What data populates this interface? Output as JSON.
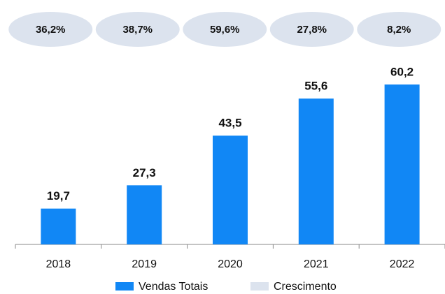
{
  "chart_data": {
    "type": "bar",
    "categories": [
      "2018",
      "2019",
      "2020",
      "2021",
      "2022"
    ],
    "series": [
      {
        "name": "Vendas Totais",
        "color": "#1187f5",
        "values": [
          19.7,
          27.3,
          43.5,
          55.6,
          60.2
        ],
        "value_labels": [
          "19,7",
          "27,3",
          "43,5",
          "55,6",
          "60,2"
        ]
      },
      {
        "name": "Crescimento",
        "color": "#dce3ee",
        "values": [
          36.2,
          38.7,
          59.6,
          27.8,
          8.2
        ],
        "value_labels": [
          "36,2%",
          "38,7%",
          "59,6%",
          "27,8%",
          "8,2%"
        ]
      }
    ],
    "ylim": [
      8,
      70
    ]
  }
}
